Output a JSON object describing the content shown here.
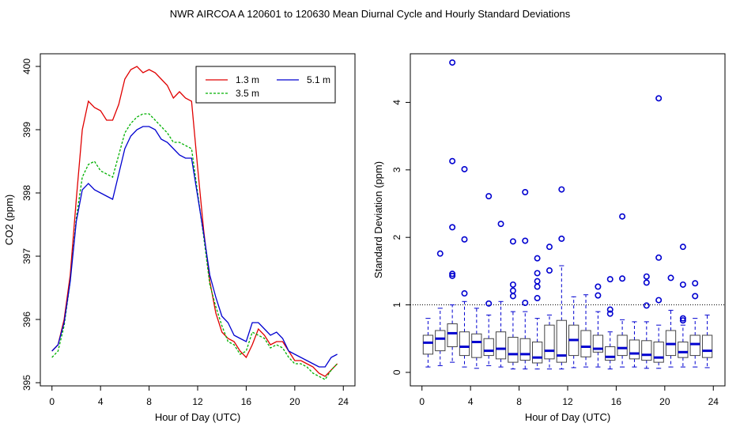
{
  "figure": {
    "title": "NWR   AIRCOA A   120601 to 120630   Mean Diurnal Cycle and Hourly Standard Deviations"
  },
  "chart_data": [
    {
      "type": "line",
      "title": "",
      "xlabel": "Hour of Day (UTC)",
      "ylabel": "CO2 (ppm)",
      "xlim": [
        0,
        24
      ],
      "ylim": [
        395,
        400
      ],
      "xticks": [
        "0",
        "4",
        "8",
        "12",
        "16",
        "20",
        "24"
      ],
      "yticks": [
        "395",
        "396",
        "397",
        "398",
        "399",
        "400"
      ],
      "legend": {
        "position": "top-right"
      },
      "x": [
        0,
        0.5,
        1,
        1.5,
        2,
        2.5,
        3,
        3.5,
        4,
        4.5,
        5,
        5.5,
        6,
        6.5,
        7,
        7.5,
        8,
        8.5,
        9,
        9.5,
        10,
        10.5,
        11,
        11.5,
        12,
        12.5,
        13,
        13.5,
        14,
        14.5,
        15,
        15.5,
        16,
        16.5,
        17,
        17.5,
        18,
        18.5,
        19,
        19.5,
        20,
        20.5,
        21,
        21.5,
        22,
        22.5,
        23,
        23.5
      ],
      "series": [
        {
          "name": "1.3 m",
          "color": "#e00000",
          "dash": "",
          "values": [
            395.5,
            395.6,
            396.0,
            396.7,
            397.9,
            399.0,
            399.45,
            399.35,
            399.3,
            399.15,
            399.15,
            399.4,
            399.8,
            399.95,
            400.0,
            399.9,
            399.95,
            399.9,
            399.8,
            399.7,
            399.5,
            399.6,
            399.5,
            399.45,
            398.4,
            397.4,
            396.6,
            396.1,
            395.8,
            395.7,
            395.65,
            395.5,
            395.4,
            395.6,
            395.85,
            395.75,
            395.6,
            395.65,
            395.65,
            395.5,
            395.35,
            395.35,
            395.3,
            395.25,
            395.15,
            395.1,
            395.2,
            395.3
          ]
        },
        {
          "name": "3.5 m",
          "color": "#00b000",
          "dash": "3,2",
          "values": [
            395.4,
            395.5,
            395.9,
            396.6,
            397.6,
            398.25,
            398.45,
            398.5,
            398.35,
            398.3,
            398.25,
            398.6,
            398.95,
            399.1,
            399.2,
            399.25,
            399.25,
            399.15,
            399.05,
            398.95,
            398.8,
            398.8,
            398.75,
            398.7,
            398.0,
            397.3,
            396.55,
            396.2,
            395.9,
            395.65,
            395.6,
            395.45,
            395.5,
            395.8,
            395.75,
            395.7,
            395.55,
            395.6,
            395.55,
            395.4,
            395.3,
            395.3,
            395.25,
            395.15,
            395.1,
            395.05,
            395.2,
            395.3
          ]
        },
        {
          "name": "5.1 m",
          "color": "#0000d0",
          "dash": "",
          "values": [
            395.5,
            395.6,
            395.95,
            396.6,
            397.55,
            398.05,
            398.15,
            398.05,
            398.0,
            397.95,
            397.9,
            398.3,
            398.7,
            398.9,
            399.0,
            399.05,
            399.05,
            399.0,
            398.85,
            398.8,
            398.7,
            398.6,
            398.55,
            398.55,
            397.95,
            397.35,
            396.7,
            396.35,
            396.05,
            395.95,
            395.75,
            395.7,
            395.65,
            395.95,
            395.95,
            395.85,
            395.75,
            395.8,
            395.7,
            395.5,
            395.45,
            395.4,
            395.35,
            395.3,
            395.25,
            395.25,
            395.4,
            395.45
          ]
        }
      ]
    },
    {
      "type": "box",
      "title": "",
      "xlabel": "Hour of Day (UTC)",
      "ylabel": "Standard Deviation (ppm)",
      "xlim": [
        0,
        24
      ],
      "ylim": [
        0,
        4.6
      ],
      "xticks": [
        "0",
        "4",
        "8",
        "12",
        "16",
        "20",
        "24"
      ],
      "yticks": [
        "0",
        "1",
        "2",
        "3",
        "4"
      ],
      "reference_line": 1,
      "box_color": "#0000d0",
      "boxes": [
        {
          "hour": 0.5,
          "q1": 0.27,
          "median": 0.44,
          "q3": 0.55,
          "whisker_low": 0.08,
          "whisker_high": 0.8,
          "outliers": []
        },
        {
          "hour": 1.5,
          "q1": 0.32,
          "median": 0.5,
          "q3": 0.62,
          "whisker_low": 0.1,
          "whisker_high": 0.95,
          "outliers": [
            1.76
          ]
        },
        {
          "hour": 2.5,
          "q1": 0.38,
          "median": 0.58,
          "q3": 0.72,
          "whisker_low": 0.15,
          "whisker_high": 1.0,
          "outliers": [
            1.43,
            1.46,
            2.15,
            3.13,
            4.59
          ]
        },
        {
          "hour": 3.5,
          "q1": 0.25,
          "median": 0.38,
          "q3": 0.6,
          "whisker_low": 0.08,
          "whisker_high": 1.05,
          "outliers": [
            1.17,
            1.97,
            3.01
          ]
        },
        {
          "hour": 4.5,
          "q1": 0.22,
          "median": 0.45,
          "q3": 0.57,
          "whisker_low": 0.06,
          "whisker_high": 0.95,
          "outliers": []
        },
        {
          "hour": 5.5,
          "q1": 0.25,
          "median": 0.32,
          "q3": 0.5,
          "whisker_low": 0.1,
          "whisker_high": 0.85,
          "outliers": [
            1.02,
            2.61
          ]
        },
        {
          "hour": 6.5,
          "q1": 0.2,
          "median": 0.35,
          "q3": 0.6,
          "whisker_low": 0.08,
          "whisker_high": 1.05,
          "outliers": [
            2.2
          ]
        },
        {
          "hour": 7.5,
          "q1": 0.15,
          "median": 0.27,
          "q3": 0.52,
          "whisker_low": 0.05,
          "whisker_high": 0.9,
          "outliers": [
            1.13,
            1.21,
            1.3,
            1.94
          ]
        },
        {
          "hour": 8.5,
          "q1": 0.18,
          "median": 0.27,
          "q3": 0.5,
          "whisker_low": 0.05,
          "whisker_high": 0.9,
          "outliers": [
            1.03,
            1.95,
            2.67
          ]
        },
        {
          "hour": 9.5,
          "q1": 0.14,
          "median": 0.22,
          "q3": 0.45,
          "whisker_low": 0.05,
          "whisker_high": 0.8,
          "outliers": [
            1.1,
            1.27,
            1.35,
            1.47,
            1.69
          ]
        },
        {
          "hour": 10.5,
          "q1": 0.2,
          "median": 0.32,
          "q3": 0.7,
          "whisker_low": 0.05,
          "whisker_high": 0.85,
          "outliers": [
            1.51,
            1.86
          ]
        },
        {
          "hour": 11.5,
          "q1": 0.15,
          "median": 0.25,
          "q3": 0.77,
          "whisker_low": 0.05,
          "whisker_high": 1.58,
          "outliers": [
            1.98,
            2.71
          ]
        },
        {
          "hour": 12.5,
          "q1": 0.25,
          "median": 0.48,
          "q3": 0.7,
          "whisker_low": 0.07,
          "whisker_high": 1.12,
          "outliers": []
        },
        {
          "hour": 13.5,
          "q1": 0.23,
          "median": 0.38,
          "q3": 0.62,
          "whisker_low": 0.08,
          "whisker_high": 1.15,
          "outliers": []
        },
        {
          "hour": 14.5,
          "q1": 0.3,
          "median": 0.35,
          "q3": 0.55,
          "whisker_low": 0.08,
          "whisker_high": 0.9,
          "outliers": [
            1.14,
            1.27
          ]
        },
        {
          "hour": 15.5,
          "q1": 0.18,
          "median": 0.23,
          "q3": 0.38,
          "whisker_low": 0.05,
          "whisker_high": 0.6,
          "outliers": [
            0.87,
            0.93,
            1.38
          ]
        },
        {
          "hour": 16.5,
          "q1": 0.25,
          "median": 0.36,
          "q3": 0.55,
          "whisker_low": 0.08,
          "whisker_high": 0.78,
          "outliers": [
            1.39,
            2.31
          ]
        },
        {
          "hour": 17.5,
          "q1": 0.2,
          "median": 0.28,
          "q3": 0.48,
          "whisker_low": 0.08,
          "whisker_high": 0.75,
          "outliers": []
        },
        {
          "hour": 18.5,
          "q1": 0.18,
          "median": 0.26,
          "q3": 0.47,
          "whisker_low": 0.06,
          "whisker_high": 0.75,
          "outliers": [
            0.99,
            1.33,
            1.42
          ]
        },
        {
          "hour": 19.5,
          "q1": 0.15,
          "median": 0.22,
          "q3": 0.45,
          "whisker_low": 0.06,
          "whisker_high": 0.7,
          "outliers": [
            1.07,
            1.7,
            4.06
          ]
        },
        {
          "hour": 20.5,
          "q1": 0.25,
          "median": 0.42,
          "q3": 0.62,
          "whisker_low": 0.08,
          "whisker_high": 0.92,
          "outliers": [
            1.4
          ]
        },
        {
          "hour": 21.5,
          "q1": 0.22,
          "median": 0.3,
          "q3": 0.45,
          "whisker_low": 0.08,
          "whisker_high": 0.7,
          "outliers": [
            0.77,
            0.8,
            1.3,
            1.86
          ]
        },
        {
          "hour": 22.5,
          "q1": 0.25,
          "median": 0.42,
          "q3": 0.55,
          "whisker_low": 0.08,
          "whisker_high": 0.8,
          "outliers": [
            1.13,
            1.32
          ]
        },
        {
          "hour": 23.5,
          "q1": 0.22,
          "median": 0.32,
          "q3": 0.55,
          "whisker_low": 0.07,
          "whisker_high": 0.85,
          "outliers": []
        }
      ]
    }
  ]
}
